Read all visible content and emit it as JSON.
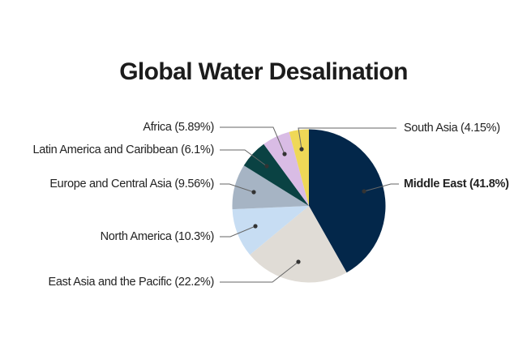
{
  "chart_data": {
    "type": "pie",
    "title": "Global Water Desalination",
    "start_angle_deg": 0,
    "direction": "clockwise",
    "slices": [
      {
        "name": "Middle East",
        "value": 41.8,
        "label": "Middle East (41.8%)",
        "color": "#03274A",
        "highlight": true
      },
      {
        "name": "East Asia and the Pacific",
        "value": 22.2,
        "label": "East Asia and the Pacific (22.2%)",
        "color": "#E0DCD6"
      },
      {
        "name": "North America",
        "value": 10.3,
        "label": "North America (10.3%)",
        "color": "#C7DDF3"
      },
      {
        "name": "Europe and Central Asia",
        "value": 9.56,
        "label": "Europe and Central Asia (9.56%)",
        "color": "#A6B4C4"
      },
      {
        "name": "Latin America and Caribbean",
        "value": 6.1,
        "label": "Latin America and Caribbean (6.1%)",
        "color": "#0A4243"
      },
      {
        "name": "Africa",
        "value": 5.89,
        "label": "Africa (5.89%)",
        "color": "#D9BCE5"
      },
      {
        "name": "South Asia",
        "value": 4.15,
        "label": "South Asia (4.15%)",
        "color": "#EFD857"
      }
    ],
    "legend": "none (direct leader-line labels)",
    "xlabel": "",
    "ylabel": ""
  },
  "labels": {
    "title": "Global Water Desalination",
    "middle_east": "Middle East (41.8%)",
    "east_asia": "East Asia and the Pacific (22.2%)",
    "north_america": "North America (10.3%)",
    "europe": "Europe and Central Asia (9.56%)",
    "latin_america": "Latin America and Caribbean (6.1%)",
    "africa": "Africa (5.89%)",
    "south_asia": "South Asia (4.15%)"
  }
}
